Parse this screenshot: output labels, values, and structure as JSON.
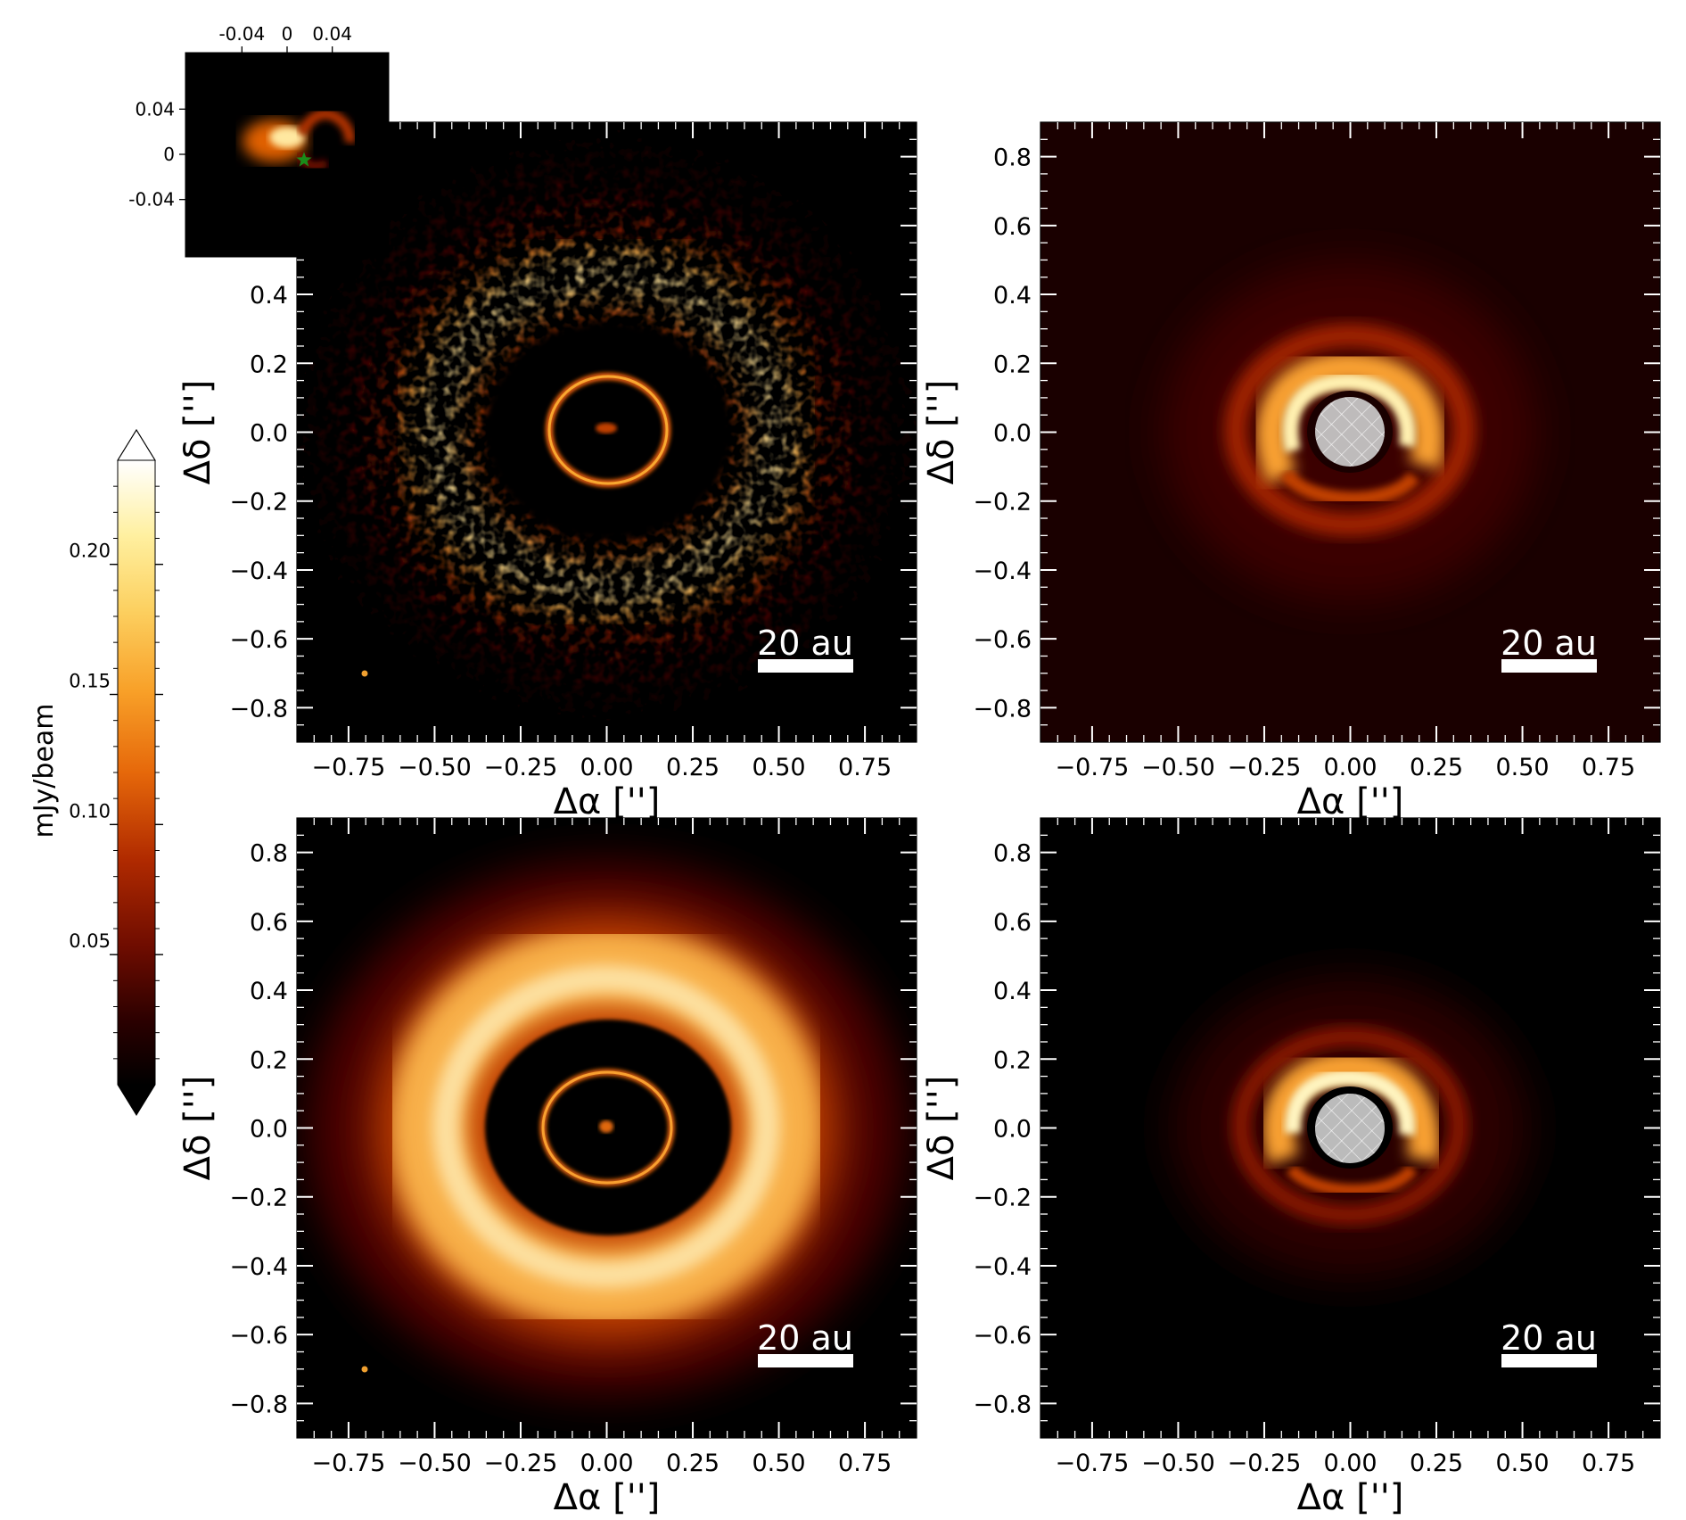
{
  "colors": {
    "cmap": [
      "#000000",
      "#2a0000",
      "#6e0c00",
      "#b02a00",
      "#e6680a",
      "#f8a028",
      "#fcd060",
      "#fff0a0",
      "#ffffff"
    ],
    "beam": "#f0a030",
    "star": "#1a8c1a",
    "mask": "#dcdcdc",
    "scalebar": "#ffffff"
  },
  "colorbar": {
    "label": "mJy/beam",
    "ticks": [
      "0.05",
      "0.10",
      "0.15",
      "0.20"
    ],
    "tick_values": [
      0.05,
      0.1,
      0.15,
      0.2
    ],
    "range": [
      0,
      0.24
    ],
    "extend": "both"
  },
  "inset": {
    "x_ticks": [
      "-0.04",
      "0",
      "0.04"
    ],
    "y_ticks": [
      "0.04",
      "0",
      "-0.04"
    ],
    "tick_values": [
      -0.04,
      0,
      0.04
    ],
    "range": [
      -0.09,
      0.09
    ],
    "star_icon": "star-icon"
  },
  "panels": {
    "x_ticks": [
      "−0.75",
      "−0.50",
      "−0.25",
      "0.00",
      "0.25",
      "0.50",
      "0.75"
    ],
    "y_ticks": [
      "0.8",
      "0.6",
      "0.4",
      "0.2",
      "0.0",
      "−0.2",
      "−0.4",
      "−0.6",
      "−0.8"
    ],
    "xlabel": "Δα ['']",
    "ylabel": "Δδ ['']",
    "scalebar_label": "20 au"
  },
  "chart_data": [
    {
      "type": "heatmap",
      "panel": "top-left",
      "description": "observed image: inner ring and outer ring with dark gap",
      "xlim": [
        -0.9,
        0.9
      ],
      "ylim": [
        -0.9,
        0.9
      ],
      "xlabel": "Δα ['']",
      "ylabel": "Δδ ['']",
      "x_ticks": [
        -0.75,
        -0.5,
        -0.25,
        0.0,
        0.25,
        0.5,
        0.75
      ],
      "y_ticks": [
        -0.8,
        -0.6,
        -0.4,
        -0.2,
        0.0,
        0.2,
        0.4,
        0.6,
        0.8
      ],
      "features": {
        "inner_ring_radius": 0.16,
        "gap_outer_radius": 0.29,
        "outer_ring_peak": 0.42,
        "noisy": true
      },
      "scalebar": "20 au",
      "beam_marker": true,
      "inset": true
    },
    {
      "type": "heatmap",
      "panel": "top-right",
      "xlim": [
        -0.9,
        0.9
      ],
      "ylim": [
        -0.9,
        0.9
      ],
      "xlabel": "Δα ['']",
      "ylabel": "Δδ ['']",
      "x_ticks": [
        -0.75,
        -0.5,
        -0.25,
        0.0,
        0.25,
        0.5,
        0.75
      ],
      "y_ticks": [
        -0.8,
        -0.6,
        -0.4,
        -0.2,
        0.0,
        0.2,
        0.4,
        0.6,
        0.8
      ],
      "features": {
        "bright_arc_radius": 0.16,
        "coronagraph_mask_radius": 0.1
      },
      "scalebar": "20 au"
    },
    {
      "type": "heatmap",
      "panel": "bottom-left",
      "xlim": [
        -0.9,
        0.9
      ],
      "ylim": [
        -0.9,
        0.9
      ],
      "xlabel": "Δα ['']",
      "ylabel": "Δδ ['']",
      "x_ticks": [
        -0.75,
        -0.5,
        -0.25,
        0.0,
        0.25,
        0.5,
        0.75
      ],
      "y_ticks": [
        -0.8,
        -0.6,
        -0.4,
        -0.2,
        0.0,
        0.2,
        0.4,
        0.6,
        0.8
      ],
      "features": {
        "inner_ring_radius": 0.16,
        "gap_outer_radius": 0.29,
        "outer_ring_peak": 0.42,
        "noisy": false
      },
      "scalebar": "20 au",
      "beam_marker": true
    },
    {
      "type": "heatmap",
      "panel": "bottom-right",
      "xlim": [
        -0.9,
        0.9
      ],
      "ylim": [
        -0.9,
        0.9
      ],
      "xlabel": "Δα ['']",
      "ylabel": "Δδ ['']",
      "x_ticks": [
        -0.75,
        -0.5,
        -0.25,
        0.0,
        0.25,
        0.5,
        0.75
      ],
      "y_ticks": [
        -0.8,
        -0.6,
        -0.4,
        -0.2,
        0.0,
        0.2,
        0.4,
        0.6,
        0.8
      ],
      "features": {
        "bright_arc_radius": 0.15,
        "coronagraph_mask_radius": 0.1
      },
      "scalebar": "20 au"
    }
  ]
}
